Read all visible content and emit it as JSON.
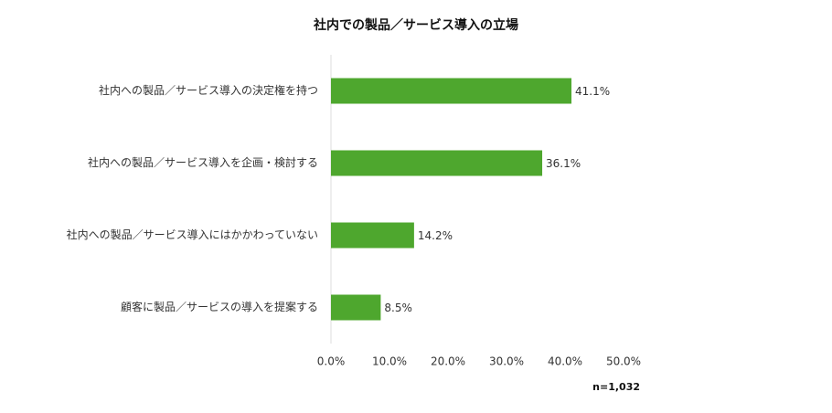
{
  "chart_data": {
    "type": "hbar",
    "title": "社内での製品／サービス導入の立場",
    "categories": [
      "社内への製品／サービス導入の決定権を持つ",
      "社内への製品／サービス導入を企画・検討する",
      "社内への製品／サービス導入にはかかわっていない",
      "顧客に製品／サービスの導入を提案する"
    ],
    "values": [
      41.1,
      36.1,
      14.2,
      8.5
    ],
    "value_labels": [
      "41.1%",
      "36.1%",
      "14.2%",
      "8.5%"
    ],
    "color": "#4ea72e",
    "xlim": [
      0,
      50
    ],
    "xticks": [
      {
        "value": 0,
        "label": "0.0%"
      },
      {
        "value": 10,
        "label": "10.0%"
      },
      {
        "value": 20,
        "label": "20.0%"
      },
      {
        "value": 30,
        "label": "30.0%"
      },
      {
        "value": 40,
        "label": "40.0%"
      },
      {
        "value": 50,
        "label": "50.0%"
      }
    ],
    "note": "n=1,032"
  }
}
